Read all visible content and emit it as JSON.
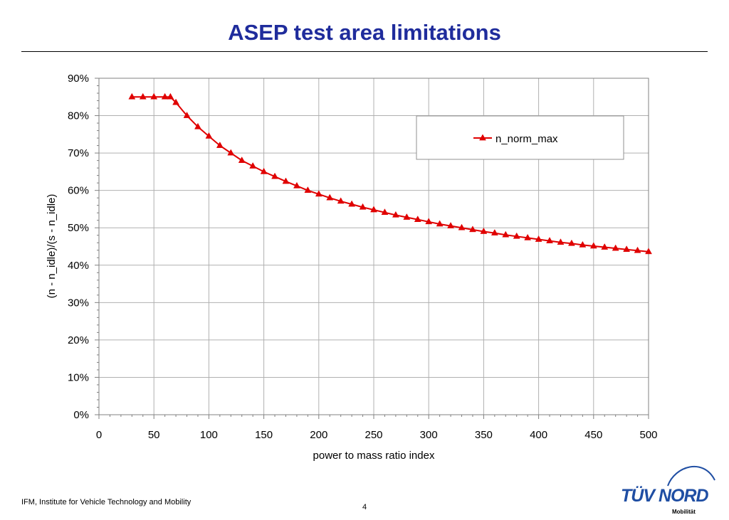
{
  "title": "ASEP test area limitations",
  "footer": {
    "institute": "IFM, Institute for Vehicle Technology and Mobility",
    "page_number": "4"
  },
  "logo": {
    "brand": "TÜV NORD",
    "sub": "Mobilität"
  },
  "colors": {
    "title": "#1f2c9c",
    "series": "#e00000",
    "logo": "#1f4ea3"
  },
  "chart_data": {
    "type": "line",
    "xlabel": "power to mass ratio index",
    "ylabel": "(n - n_idle)/(s - n_idle)",
    "xlim": [
      0,
      500
    ],
    "ylim": [
      0,
      0.9
    ],
    "x_ticks": [
      "0",
      "50",
      "100",
      "150",
      "200",
      "250",
      "300",
      "350",
      "400",
      "450",
      "500"
    ],
    "y_ticks": [
      "0%",
      "10%",
      "20%",
      "30%",
      "40%",
      "50%",
      "60%",
      "70%",
      "80%",
      "90%"
    ],
    "grid": true,
    "legend_position": "top-right",
    "series": [
      {
        "name": "n_norm_max",
        "marker": "triangle",
        "x": [
          30,
          40,
          50,
          60,
          65,
          70,
          80,
          90,
          100,
          110,
          120,
          130,
          140,
          150,
          160,
          170,
          180,
          190,
          200,
          210,
          220,
          230,
          240,
          250,
          260,
          270,
          280,
          290,
          300,
          310,
          320,
          330,
          340,
          350,
          360,
          370,
          380,
          390,
          400,
          410,
          420,
          430,
          440,
          450,
          460,
          470,
          480,
          490,
          500
        ],
        "y": [
          0.85,
          0.85,
          0.85,
          0.85,
          0.85,
          0.835,
          0.8,
          0.77,
          0.745,
          0.72,
          0.7,
          0.68,
          0.665,
          0.65,
          0.637,
          0.624,
          0.612,
          0.6,
          0.59,
          0.58,
          0.571,
          0.563,
          0.555,
          0.548,
          0.541,
          0.534,
          0.528,
          0.522,
          0.516,
          0.51,
          0.505,
          0.5,
          0.495,
          0.49,
          0.486,
          0.481,
          0.477,
          0.473,
          0.469,
          0.465,
          0.461,
          0.458,
          0.454,
          0.451,
          0.448,
          0.445,
          0.442,
          0.439,
          0.436
        ]
      }
    ]
  }
}
